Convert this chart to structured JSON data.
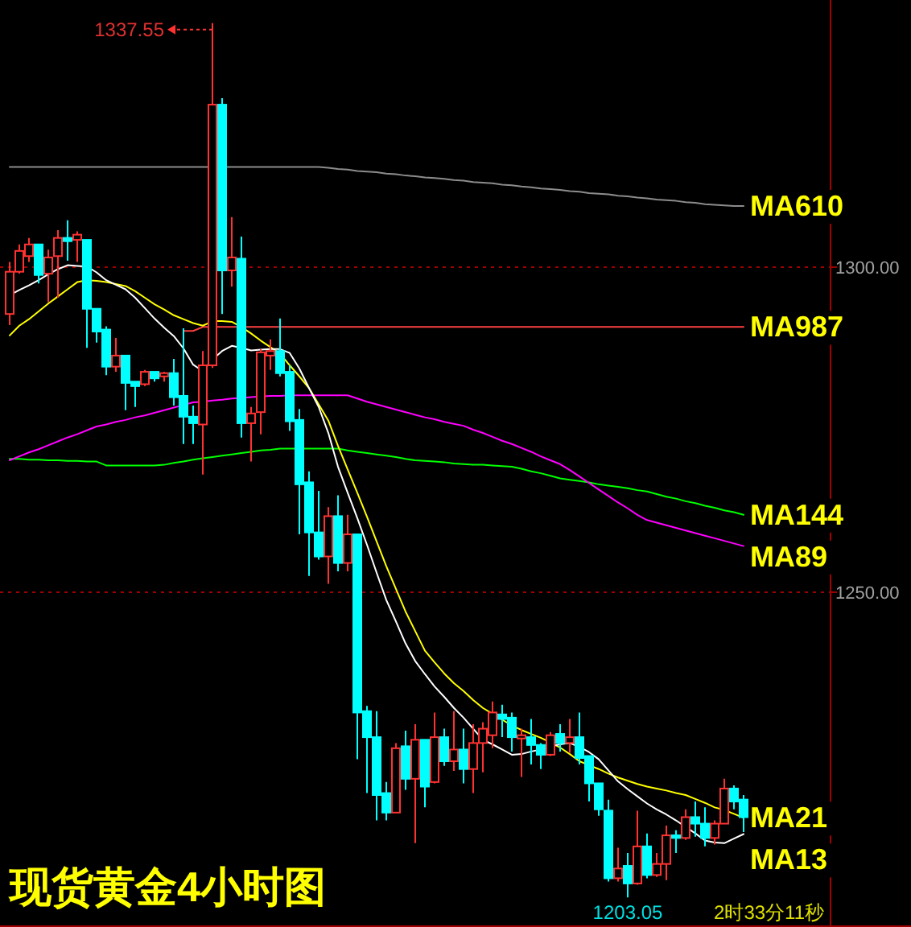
{
  "chart_data": {
    "type": "candlestick",
    "title": "现货黄金4小时图",
    "categories": [
      null,
      null,
      null,
      null,
      null,
      null,
      null,
      null,
      null,
      null,
      null,
      null,
      null,
      null,
      null,
      null,
      null,
      null,
      null,
      null,
      null,
      null,
      null,
      null,
      null,
      null,
      null,
      null,
      null,
      null,
      null,
      null,
      null,
      null,
      null,
      null,
      null,
      null,
      null,
      null,
      null,
      null,
      null,
      null,
      null,
      null,
      null,
      null,
      null,
      null,
      null,
      null,
      null,
      null,
      null,
      null,
      null,
      null,
      null,
      null,
      null,
      null,
      null,
      null,
      null,
      null,
      null,
      null,
      null,
      null,
      null,
      null,
      null,
      null,
      null,
      null,
      null
    ],
    "ohlc": [
      [
        1292.8,
        1300.8,
        1291.1,
        1299.3
      ],
      [
        1299.3,
        1303.5,
        1299.0,
        1302.5
      ],
      [
        1301.7,
        1304.5,
        1300.8,
        1303.5
      ],
      [
        1303.5,
        1303.5,
        1297.5,
        1298.8
      ],
      [
        1299.0,
        1302.7,
        1294.6,
        1301.5
      ],
      [
        1301.7,
        1305.7,
        1295.3,
        1304.5
      ],
      [
        1304.5,
        1307.2,
        1301.0,
        1304.0
      ],
      [
        1304.2,
        1305.5,
        1300.8,
        1305.0
      ],
      [
        1304.2,
        1304.2,
        1287.6,
        1293.6
      ],
      [
        1293.6,
        1293.6,
        1288.4,
        1290.1
      ],
      [
        1290.4,
        1290.9,
        1283.4,
        1284.7
      ],
      [
        1284.7,
        1289.1,
        1283.9,
        1286.4
      ],
      [
        1286.4,
        1286.4,
        1278.0,
        1282.2
      ],
      [
        1282.4,
        1282.4,
        1278.5,
        1281.7
      ],
      [
        1282.0,
        1284.2,
        1281.7,
        1283.9
      ],
      [
        1283.9,
        1283.9,
        1282.4,
        1282.9
      ],
      [
        1283.2,
        1283.9,
        1282.4,
        1283.7
      ],
      [
        1283.7,
        1285.9,
        1278.7,
        1280.0
      ],
      [
        1280.2,
        1290.6,
        1272.8,
        1277.0
      ],
      [
        1277.0,
        1278.7,
        1272.8,
        1276.0
      ],
      [
        1275.8,
        1287.1,
        1268.1,
        1284.9
      ],
      [
        1284.9,
        1337.55,
        1284.5,
        1325.0
      ],
      [
        1325.0,
        1326.0,
        1292.8,
        1299.5
      ],
      [
        1299.5,
        1307.7,
        1297.0,
        1301.5
      ],
      [
        1301.3,
        1304.7,
        1273.8,
        1276.0
      ],
      [
        1276.0,
        1278.5,
        1270.1,
        1277.5
      ],
      [
        1277.7,
        1287.4,
        1274.3,
        1286.9
      ],
      [
        1286.4,
        1288.9,
        1284.2,
        1287.1
      ],
      [
        1287.1,
        1292.1,
        1283.2,
        1283.7
      ],
      [
        1283.9,
        1284.9,
        1274.8,
        1276.3
      ],
      [
        1276.5,
        1278.2,
        1258.9,
        1266.6
      ],
      [
        1266.9,
        1268.6,
        1252.5,
        1259.2
      ],
      [
        1259.2,
        1265.6,
        1255.0,
        1255.5
      ],
      [
        1255.5,
        1263.1,
        1251.3,
        1261.7
      ],
      [
        1261.7,
        1264.9,
        1253.2,
        1254.5
      ],
      [
        1254.5,
        1261.9,
        1253.2,
        1258.9
      ],
      [
        1258.9,
        1258.9,
        1224.3,
        1231.5
      ],
      [
        1231.7,
        1232.5,
        1219.1,
        1227.7
      ],
      [
        1227.7,
        1231.7,
        1214.9,
        1218.8
      ],
      [
        1219.1,
        1220.8,
        1214.9,
        1216.1
      ],
      [
        1216.1,
        1226.8,
        1216.1,
        1226.0
      ],
      [
        1226.3,
        1228.7,
        1219.6,
        1221.3
      ],
      [
        1221.3,
        1229.7,
        1211.4,
        1227.3
      ],
      [
        1227.3,
        1227.3,
        1216.9,
        1220.1
      ],
      [
        1220.8,
        1231.5,
        1220.6,
        1227.7
      ],
      [
        1227.7,
        1229.0,
        1223.3,
        1224.0
      ],
      [
        1224.0,
        1231.7,
        1222.5,
        1225.8
      ],
      [
        1225.8,
        1229.0,
        1220.6,
        1222.8
      ],
      [
        1222.8,
        1229.7,
        1219.1,
        1226.8
      ],
      [
        1226.8,
        1230.0,
        1222.3,
        1229.0
      ],
      [
        1228.0,
        1233.2,
        1226.0,
        1231.5
      ],
      [
        1231.2,
        1232.7,
        1227.7,
        1230.5
      ],
      [
        1230.7,
        1231.5,
        1225.5,
        1227.7
      ],
      [
        1227.5,
        1229.0,
        1221.6,
        1228.0
      ],
      [
        1227.7,
        1230.5,
        1223.5,
        1226.5
      ],
      [
        1226.5,
        1226.8,
        1222.8,
        1225.0
      ],
      [
        1225.0,
        1228.5,
        1224.8,
        1228.0
      ],
      [
        1228.2,
        1229.7,
        1225.5,
        1226.8
      ],
      [
        1226.8,
        1230.5,
        1225.3,
        1227.7
      ],
      [
        1227.7,
        1231.5,
        1223.5,
        1224.5
      ],
      [
        1224.8,
        1224.8,
        1217.8,
        1220.6
      ],
      [
        1220.6,
        1220.6,
        1215.6,
        1216.6
      ],
      [
        1216.4,
        1218.1,
        1205.5,
        1206.0
      ],
      [
        1206.0,
        1210.7,
        1205.5,
        1207.5
      ],
      [
        1207.9,
        1209.9,
        1203.05,
        1205.2
      ],
      [
        1205.2,
        1216.4,
        1205.0,
        1210.9
      ],
      [
        1210.9,
        1212.9,
        1206.0,
        1206.5
      ],
      [
        1206.5,
        1209.9,
        1206.2,
        1208.2
      ],
      [
        1208.2,
        1214.1,
        1205.7,
        1212.6
      ],
      [
        1212.6,
        1213.4,
        1209.9,
        1212.2
      ],
      [
        1212.2,
        1216.6,
        1211.9,
        1215.4
      ],
      [
        1215.4,
        1217.8,
        1212.4,
        1214.4
      ],
      [
        1214.4,
        1216.9,
        1210.9,
        1212.2
      ],
      [
        1212.2,
        1214.9,
        1211.2,
        1214.4
      ],
      [
        1214.4,
        1221.3,
        1214.4,
        1219.8
      ],
      [
        1219.8,
        1220.3,
        1216.6,
        1217.8
      ],
      [
        1218.1,
        1218.8,
        1213.1,
        1215.4
      ]
    ],
    "series": [
      {
        "type": "line",
        "name": "MA610",
        "color": "#8c8c8c",
        "values": [
          1315.4,
          1315.4,
          1315.4,
          1315.4,
          1315.4,
          1315.4,
          1315.4,
          1315.4,
          1315.4,
          1315.4,
          1315.4,
          1315.4,
          1315.4,
          1315.4,
          1315.4,
          1315.4,
          1315.4,
          1315.4,
          1315.4,
          1315.4,
          1315.4,
          1315.4,
          1315.4,
          1315.4,
          1315.4,
          1315.4,
          1315.4,
          1315.4,
          1315.4,
          1315.4,
          1315.4,
          1315.4,
          1315.4,
          1315.3,
          1315.1,
          1315.0,
          1314.8,
          1314.7,
          1314.6,
          1314.4,
          1314.3,
          1314.1,
          1314.0,
          1313.8,
          1313.7,
          1313.6,
          1313.4,
          1313.3,
          1313.1,
          1313.0,
          1312.9,
          1312.7,
          1312.6,
          1312.4,
          1312.3,
          1312.1,
          1312.0,
          1311.9,
          1311.7,
          1311.6,
          1311.4,
          1311.3,
          1311.2,
          1311.0,
          1310.9,
          1310.7,
          1310.6,
          1310.4,
          1310.3,
          1310.2,
          1310.0,
          1309.9,
          1309.7,
          1309.6,
          1309.5,
          1309.4,
          1309.4
        ]
      },
      {
        "type": "line",
        "name": "MA987",
        "color": "#ff4040",
        "values": [
          null,
          null,
          null,
          null,
          null,
          null,
          null,
          null,
          null,
          null,
          null,
          null,
          null,
          null,
          null,
          null,
          null,
          null,
          1290.2,
          1290.2,
          1290.8,
          1290.8,
          1290.8,
          1290.8,
          1290.8,
          1290.8,
          1290.8,
          1290.8,
          1290.8,
          1290.8,
          1290.8,
          1290.8,
          1290.8,
          1290.8,
          1290.8,
          1290.8,
          1290.8,
          1290.8,
          1290.8,
          1290.8,
          1290.8,
          1290.8,
          1290.8,
          1290.8,
          1290.8,
          1290.8,
          1290.8,
          1290.8,
          1290.8,
          1290.8,
          1290.8,
          1290.8,
          1290.8,
          1290.8,
          1290.8,
          1290.8,
          1290.8,
          1290.8,
          1290.8,
          1290.8,
          1290.8,
          1290.8,
          1290.8,
          1290.8,
          1290.8,
          1290.8,
          1290.8,
          1290.8,
          1290.8,
          1290.8,
          1290.8,
          1290.8,
          1290.8,
          1290.8,
          1290.8,
          1290.8,
          1290.8
        ]
      },
      {
        "type": "line",
        "name": "MA144",
        "color": "#00ff00",
        "values": [
          1270.5,
          1270.5,
          1270.4,
          1270.4,
          1270.3,
          1270.3,
          1270.2,
          1270.2,
          1270.1,
          1270.1,
          1269.5,
          1269.5,
          1269.5,
          1269.5,
          1269.5,
          1269.5,
          1269.6,
          1269.9,
          1270.1,
          1270.4,
          1270.6,
          1270.8,
          1271.0,
          1271.2,
          1271.4,
          1271.6,
          1271.8,
          1271.9,
          1272.1,
          1272.1,
          1272.1,
          1272.1,
          1272.1,
          1272.1,
          1272.1,
          1271.8,
          1271.6,
          1271.4,
          1271.2,
          1271.0,
          1270.8,
          1270.5,
          1270.3,
          1270.2,
          1270.1,
          1270.0,
          1269.8,
          1269.7,
          1269.6,
          1269.6,
          1269.5,
          1269.4,
          1269.3,
          1269.0,
          1268.6,
          1268.3,
          1267.9,
          1267.5,
          1267.3,
          1267.1,
          1266.9,
          1266.6,
          1266.4,
          1266.2,
          1266.0,
          1265.7,
          1265.5,
          1265.1,
          1264.7,
          1264.4,
          1264.0,
          1263.7,
          1263.3,
          1263.0,
          1262.6,
          1262.3,
          1261.9
        ]
      },
      {
        "type": "line",
        "name": "MA89",
        "color": "#ff00ff",
        "values": [
          1270.3,
          1270.9,
          1271.5,
          1272.0,
          1272.6,
          1273.2,
          1273.8,
          1274.3,
          1274.9,
          1275.5,
          1275.8,
          1276.2,
          1276.5,
          1276.9,
          1277.2,
          1277.6,
          1278.0,
          1278.4,
          1278.8,
          1279.2,
          1279.3,
          1279.5,
          1279.6,
          1279.8,
          1279.9,
          1280.0,
          1280.1,
          1280.2,
          1280.2,
          1280.3,
          1280.3,
          1280.3,
          1280.3,
          1280.3,
          1280.3,
          1280.3,
          1279.8,
          1279.3,
          1278.9,
          1278.5,
          1278.1,
          1277.7,
          1277.3,
          1276.9,
          1276.6,
          1276.2,
          1275.9,
          1275.6,
          1275.0,
          1274.5,
          1273.9,
          1273.3,
          1272.8,
          1272.2,
          1271.6,
          1270.9,
          1270.3,
          1269.7,
          1268.8,
          1267.8,
          1266.8,
          1265.8,
          1264.8,
          1263.8,
          1262.9,
          1261.9,
          1261.1,
          1260.7,
          1260.3,
          1259.9,
          1259.5,
          1259.1,
          1258.7,
          1258.3,
          1257.9,
          1257.5,
          1257.1
        ]
      },
      {
        "type": "line",
        "name": "MA21",
        "color": "#ffff00",
        "values": [
          1289.5,
          1291.0,
          1292.0,
          1293.2,
          1294.4,
          1295.5,
          1296.6,
          1297.7,
          1298.0,
          1297.9,
          1297.7,
          1297.4,
          1297.1,
          1296.3,
          1295.3,
          1294.3,
          1293.5,
          1292.6,
          1292.0,
          1291.4,
          1291.0,
          1291.7,
          1291.7,
          1291.6,
          1290.8,
          1289.8,
          1288.7,
          1287.7,
          1286.7,
          1284.9,
          1283.2,
          1281.4,
          1278.9,
          1276.4,
          1272.5,
          1268.9,
          1265.3,
          1261.6,
          1257.8,
          1254.0,
          1250.5,
          1247.0,
          1244.0,
          1241.0,
          1239.2,
          1237.5,
          1236.0,
          1234.8,
          1233.4,
          1232.2,
          1231.3,
          1230.4,
          1229.5,
          1228.8,
          1228.2,
          1227.6,
          1226.9,
          1226.1,
          1225.1,
          1224.0,
          1223.4,
          1222.8,
          1222.1,
          1221.5,
          1221.0,
          1220.5,
          1220.1,
          1219.8,
          1219.5,
          1219.1,
          1218.8,
          1218.2,
          1217.6,
          1216.9,
          1216.5,
          1215.9,
          1215.3
        ]
      },
      {
        "type": "line",
        "name": "MA13",
        "color": "#ffffff",
        "values": [
          1295.7,
          1296.5,
          1297.2,
          1298.0,
          1298.9,
          1299.7,
          1300.3,
          1300.2,
          1300.1,
          1299.2,
          1298.0,
          1297.3,
          1296.6,
          1295.3,
          1293.7,
          1292.1,
          1290.7,
          1289.4,
          1287.5,
          1285.0,
          1284.0,
          1285.8,
          1287.1,
          1287.9,
          1287.6,
          1287.2,
          1287.3,
          1287.4,
          1287.4,
          1286.8,
          1284.4,
          1281.4,
          1278.5,
          1274.5,
          1269.3,
          1265.3,
          1261.4,
          1257.3,
          1253.0,
          1248.8,
          1245.5,
          1242.1,
          1239.4,
          1237.4,
          1235.5,
          1233.9,
          1232.2,
          1230.7,
          1229.0,
          1227.3,
          1226.6,
          1225.8,
          1225.0,
          1225.1,
          1225.5,
          1225.8,
          1226.3,
          1226.6,
          1226.8,
          1226.2,
          1225.4,
          1224.3,
          1222.6,
          1220.9,
          1219.7,
          1218.6,
          1217.5,
          1216.6,
          1215.8,
          1214.9,
          1213.9,
          1212.9,
          1211.8,
          1211.5,
          1211.4,
          1212.1,
          1212.8
        ]
      }
    ],
    "ylim": [
      1198.5,
      1341.1
    ],
    "yticks": [
      {
        "value": 1300,
        "label": "1300.00"
      },
      {
        "value": 1250,
        "label": "1250.00"
      }
    ],
    "grid": "y",
    "tick_labels": "y",
    "annotations": [
      "1337.55",
      "1203.05",
      "2时33分11秒"
    ]
  }
}
